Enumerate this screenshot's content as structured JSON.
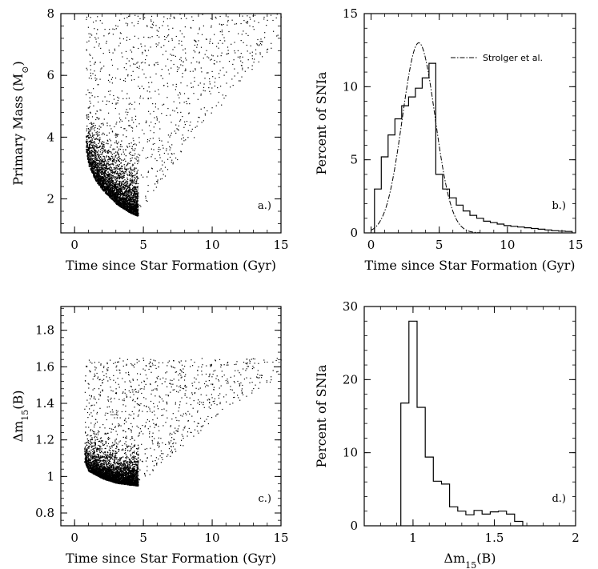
{
  "chart_data": [
    {
      "id": "a",
      "type": "scatter",
      "panel_label": "a.)",
      "xlabel": "Time since Star Formation (Gyr)",
      "ylabel": "Primary Mass (M⊙)",
      "xlim": [
        -1,
        15
      ],
      "ylim": [
        0.9,
        8
      ],
      "xticks": [
        0,
        5,
        10,
        15
      ],
      "xtick_labels": [
        "0",
        "5",
        "10",
        "15"
      ],
      "yticks": [
        2,
        4,
        6,
        8
      ],
      "ytick_labels": [
        "2",
        "4",
        "6",
        "8"
      ],
      "distribution": {
        "description_points": "dense curved lower envelope from (0.8, 3.6) through (3, 1.9) to (4.6, 1.45); sparse fill above up to 8; upper-right boundary rising from (4.6, 1.45) to (15, 7.2)",
        "lower_envelope": [
          [
            0.8,
            3.6
          ],
          [
            1.0,
            3.1
          ],
          [
            1.5,
            2.6
          ],
          [
            2.0,
            2.3
          ],
          [
            3.0,
            1.85
          ],
          [
            4.0,
            1.55
          ],
          [
            4.6,
            1.45
          ]
        ],
        "right_boundary": [
          [
            4.6,
            1.45
          ],
          [
            6,
            2.4
          ],
          [
            8,
            3.6
          ],
          [
            10,
            4.7
          ],
          [
            12,
            5.8
          ],
          [
            15,
            7.2
          ]
        ],
        "y_max": 8
      }
    },
    {
      "id": "b",
      "type": "bar",
      "panel_label": "b.)",
      "xlabel": "Time since Star Formation (Gyr)",
      "ylabel": "Percent of SNIa",
      "xlim": [
        -0.5,
        15
      ],
      "ylim": [
        0,
        15
      ],
      "xticks": [
        0,
        5,
        10,
        15
      ],
      "xtick_labels": [
        "0",
        "5",
        "10",
        "15"
      ],
      "yticks": [
        0,
        5,
        10,
        15
      ],
      "ytick_labels": [
        "0",
        "5",
        "10",
        "15"
      ],
      "bin_edges": [
        0.25,
        0.75,
        1.25,
        1.75,
        2.25,
        2.75,
        3.25,
        3.75,
        4.25,
        4.75,
        5.25,
        5.75,
        6.25,
        6.75,
        7.25,
        7.75,
        8.25,
        8.75,
        9.25,
        9.75,
        10.25,
        10.75,
        11.25,
        11.75,
        12.25,
        12.75,
        13.25,
        13.75,
        14.25,
        14.75
      ],
      "values": [
        3.0,
        5.2,
        6.7,
        7.8,
        8.7,
        9.3,
        9.9,
        10.6,
        11.6,
        4.0,
        3.0,
        2.4,
        1.9,
        1.5,
        1.2,
        1.0,
        0.8,
        0.7,
        0.6,
        0.5,
        0.45,
        0.4,
        0.35,
        0.3,
        0.25,
        0.2,
        0.15,
        0.12,
        0.1
      ],
      "series": [
        {
          "name": "Strolger et al.",
          "style": "dash-dot",
          "curve": "gaussian",
          "peak_x": 3.5,
          "peak_y": 13.0,
          "sigma": 1.2
        }
      ],
      "legend_position": "top-right"
    },
    {
      "id": "c",
      "type": "scatter",
      "panel_label": "c.)",
      "xlabel": "Time since Star Formation (Gyr)",
      "ylabel": "Δm15(B)",
      "xlim": [
        -1,
        15
      ],
      "ylim": [
        0.73,
        1.93
      ],
      "xticks": [
        0,
        5,
        10,
        15
      ],
      "xtick_labels": [
        "0",
        "5",
        "10",
        "15"
      ],
      "yticks": [
        0.8,
        1.0,
        1.2,
        1.4,
        1.6,
        1.8
      ],
      "ytick_labels": [
        "0.8",
        "1",
        "1.2",
        "1.4",
        "1.6",
        "1.8"
      ],
      "distribution": {
        "lower_envelope": [
          [
            0.7,
            1.08
          ],
          [
            1.0,
            1.03
          ],
          [
            2.0,
            0.99
          ],
          [
            3.0,
            0.965
          ],
          [
            4.0,
            0.955
          ],
          [
            4.6,
            0.95
          ]
        ],
        "right_boundary": [
          [
            4.6,
            0.95
          ],
          [
            6,
            1.05
          ],
          [
            8,
            1.18
          ],
          [
            10,
            1.3
          ],
          [
            12,
            1.42
          ],
          [
            15,
            1.55
          ]
        ],
        "y_max": 1.65
      }
    },
    {
      "id": "d",
      "type": "bar",
      "panel_label": "d.)",
      "xlabel": "Δm15(B)",
      "ylabel": "Percent of SNIa",
      "xlim": [
        0.7,
        2.0
      ],
      "ylim": [
        0,
        30
      ],
      "xticks": [
        1.0,
        1.5,
        2.0
      ],
      "xtick_labels": [
        "1",
        "1.5",
        "2"
      ],
      "yticks": [
        0,
        10,
        20,
        30
      ],
      "ytick_labels": [
        "0",
        "10",
        "20",
        "30"
      ],
      "bin_edges": [
        0.925,
        0.975,
        1.025,
        1.075,
        1.125,
        1.175,
        1.225,
        1.275,
        1.325,
        1.375,
        1.425,
        1.475,
        1.525,
        1.575,
        1.625,
        1.675
      ],
      "values": [
        16.8,
        28.0,
        16.2,
        9.4,
        6.1,
        5.7,
        2.6,
        2.0,
        1.5,
        2.1,
        1.6,
        1.9,
        2.0,
        1.6,
        0.6
      ]
    }
  ]
}
